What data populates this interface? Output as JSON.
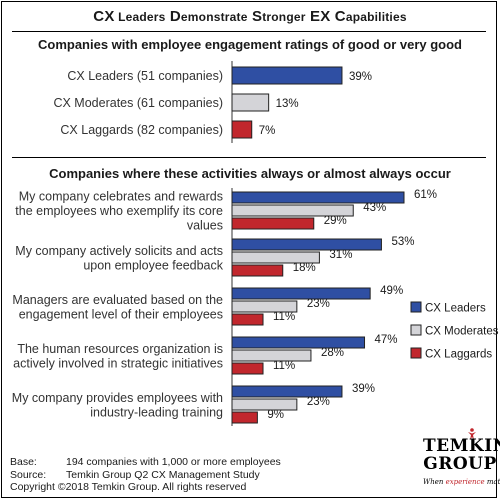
{
  "title": {
    "part1_first": "CX",
    "part1_rest": " Leaders",
    "part2_first": "D",
    "part2_rest": "emonstrate",
    "part3_first": "S",
    "part3_rest": "tronger",
    "part4": "EX",
    "part5_first": "C",
    "part5_rest": "apabilities"
  },
  "colors": {
    "leaders": "#2f4fa3",
    "moderates": "#d4d4d8",
    "laggards": "#c1272d",
    "bar_stroke": "#222222"
  },
  "chart_data": [
    {
      "type": "bar",
      "orientation": "horizontal",
      "title": "Companies with employee engagement ratings of good or very good",
      "categories": [
        "CX Leaders (51 companies)",
        "CX Moderates (61 companies)",
        "CX Laggards (82 companies)"
      ],
      "values": [
        39,
        13,
        7
      ],
      "value_labels": [
        "39%",
        "13%",
        "7%"
      ],
      "colors": [
        "#2f4fa3",
        "#d4d4d8",
        "#c1272d"
      ],
      "xlim": [
        0,
        61
      ]
    },
    {
      "type": "bar",
      "orientation": "horizontal",
      "title": "Companies where these activities always or almost always occur",
      "categories": [
        [
          "My company celebrates and rewards",
          "the employees who exemplify its core",
          "values"
        ],
        [
          "My company actively solicits and acts",
          "upon employee feedback"
        ],
        [
          "Managers are evaluated based on the",
          "engagement level of their employees"
        ],
        [
          "The human resources organization is",
          "actively involved in strategic initiatives"
        ],
        [
          "My company provides employees with",
          "industry-leading training"
        ]
      ],
      "series": [
        {
          "name": "CX Leaders",
          "values": [
            61,
            53,
            49,
            47,
            39
          ],
          "labels": [
            "61%",
            "53%",
            "49%",
            "47%",
            "39%"
          ],
          "color": "#2f4fa3"
        },
        {
          "name": "CX Moderates",
          "values": [
            43,
            31,
            23,
            28,
            23
          ],
          "labels": [
            "43%",
            "31%",
            "23%",
            "28%",
            "23%"
          ],
          "color": "#d4d4d8"
        },
        {
          "name": "CX Laggards",
          "values": [
            29,
            18,
            11,
            11,
            9
          ],
          "labels": [
            "29%",
            "18%",
            "11%",
            "11%",
            "9%"
          ],
          "color": "#c1272d"
        }
      ],
      "xlim": [
        0,
        61
      ],
      "legend": "right"
    }
  ],
  "footer": {
    "base_key": "Base:",
    "base_val": "194 companies with 1,000 or more employees",
    "source_key": "Source:",
    "source_val": "Temkin Group Q2 CX Management Study",
    "copyright": "Copyright ©2018 Temkin Group. All rights reserved"
  },
  "logo": {
    "line1": "TEMKIN",
    "line2": "GROUP",
    "tag_pre": "When ",
    "tag_em": "experience",
    "tag_post": " matters"
  }
}
